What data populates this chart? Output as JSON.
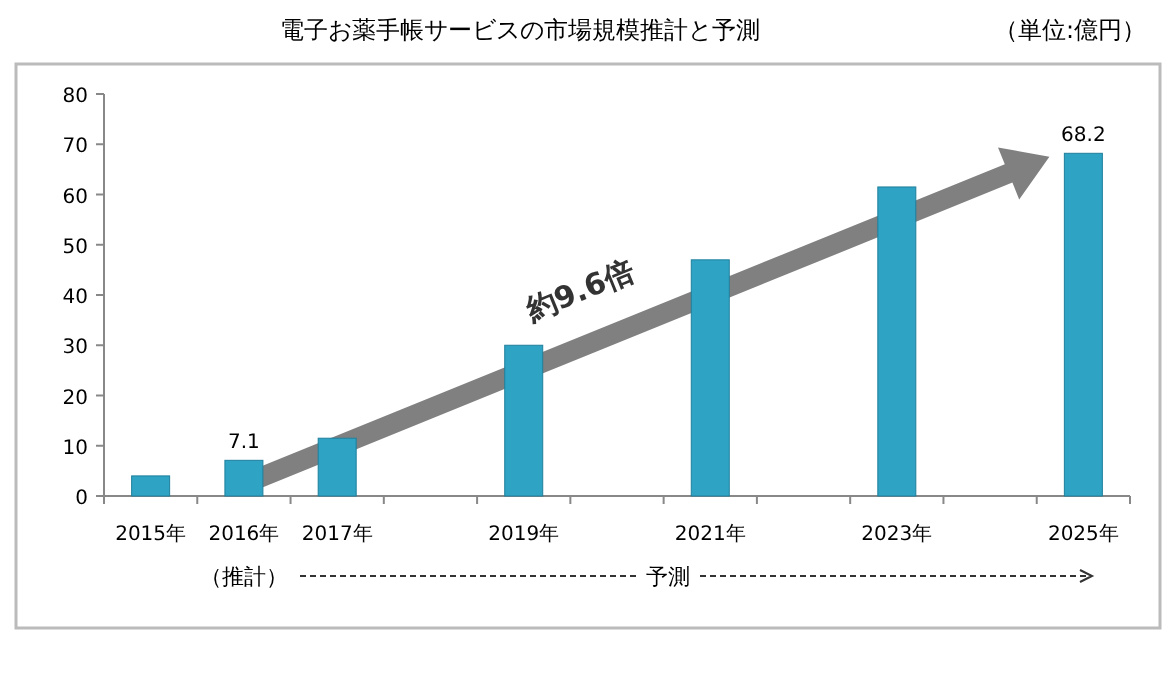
{
  "chart_data": {
    "type": "bar",
    "title": "電子お薬手帳サービスの市場規模推計と予測",
    "categories": [
      "2015年",
      "2016年",
      "2017年",
      null,
      "2019年",
      null,
      "2021年",
      null,
      "2023年",
      null,
      "2025年"
    ],
    "values": [
      4,
      7.1,
      11.5,
      null,
      30,
      null,
      47,
      null,
      61.5,
      null,
      68.2
    ],
    "value_labels": [
      null,
      "7.1",
      null,
      null,
      null,
      null,
      null,
      null,
      null,
      null,
      "68.2"
    ],
    "color": "#2ea3c4",
    "ylim": [
      0,
      80
    ],
    "yticks": [
      0,
      10,
      20,
      30,
      40,
      50,
      60,
      70,
      80
    ],
    "annotations": [
      "（単位:億円）",
      "約9.6倍",
      "（推計）",
      "予測"
    ]
  }
}
